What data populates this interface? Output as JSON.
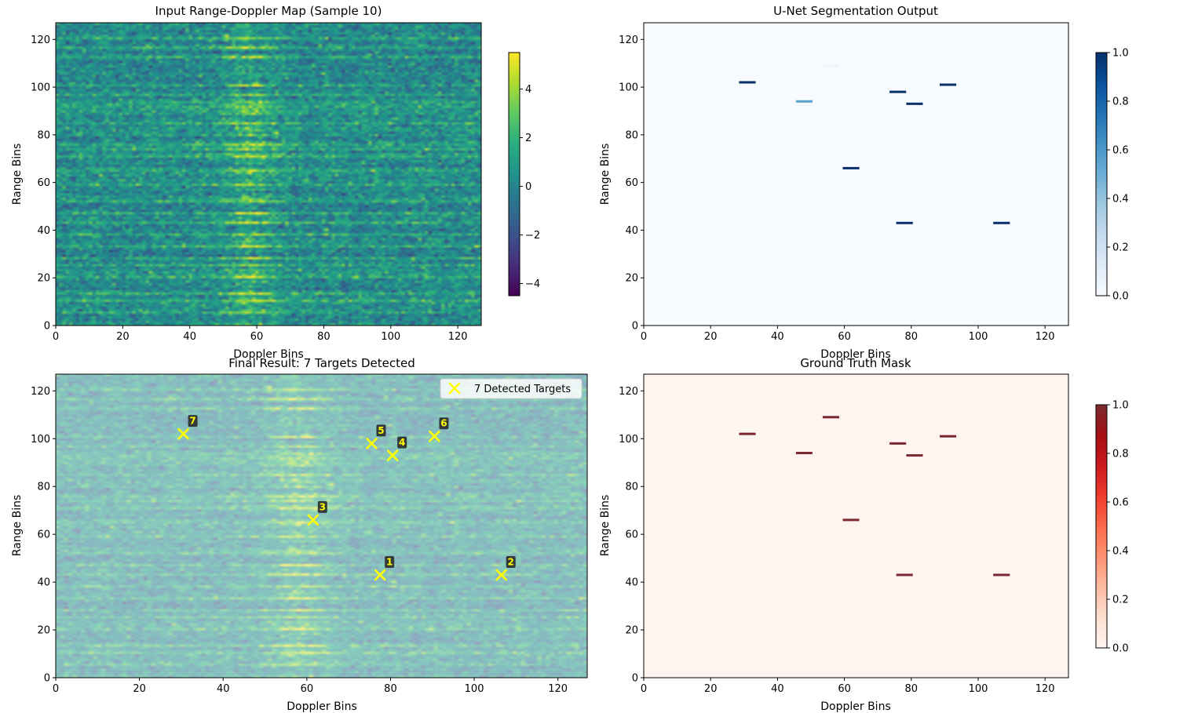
{
  "chart_data": [
    {
      "type": "heatmap",
      "title": "Input Range-Doppler Map (Sample 10)",
      "xlabel": "Doppler Bins",
      "ylabel": "Range Bins",
      "xlim": [
        0,
        127
      ],
      "ylim": [
        0,
        127
      ],
      "xticks": [
        0,
        20,
        40,
        60,
        80,
        100,
        120
      ],
      "yticks": [
        0,
        20,
        40,
        60,
        80,
        100,
        120
      ],
      "colormap": "viridis",
      "colorbar": {
        "min": -4.5,
        "max": 5.5,
        "ticks": [
          -4,
          -2,
          0,
          2,
          4
        ],
        "tick_labels": [
          "−4",
          "−2",
          "0",
          "2",
          "4"
        ]
      },
      "noise_mean": 0.3,
      "ridge_center_doppler": 58,
      "strong_range_rows": [
        5,
        10,
        13,
        20,
        25,
        28,
        33,
        38,
        43,
        47,
        52,
        59,
        65,
        71,
        74,
        76,
        85,
        92,
        97,
        101,
        113,
        117,
        121
      ]
    },
    {
      "type": "heatmap",
      "title": "U-Net Segmentation Output",
      "xlabel": "Doppler Bins",
      "ylabel": "Range Bins",
      "xlim": [
        0,
        127
      ],
      "ylim": [
        0,
        127
      ],
      "xticks": [
        0,
        20,
        40,
        60,
        80,
        100,
        120
      ],
      "yticks": [
        0,
        20,
        40,
        60,
        80,
        100,
        120
      ],
      "colormap": "Blues",
      "colorbar": {
        "min": 0.0,
        "max": 1.0,
        "ticks": [
          0.0,
          0.2,
          0.4,
          0.6,
          0.8,
          1.0
        ],
        "tick_labels": [
          "0.0",
          "0.2",
          "0.4",
          "0.6",
          "0.8",
          "1.0"
        ]
      },
      "segments": [
        {
          "x0": 29,
          "x1": 33,
          "y": 102,
          "value": 1.0
        },
        {
          "x0": 46,
          "x1": 50,
          "y": 94,
          "value": 0.55
        },
        {
          "x0": 54,
          "x1": 58,
          "y": 109,
          "value": 0.06
        },
        {
          "x0": 60,
          "x1": 64,
          "y": 66,
          "value": 1.0
        },
        {
          "x0": 74,
          "x1": 78,
          "y": 98,
          "value": 1.0
        },
        {
          "x0": 76,
          "x1": 80,
          "y": 43,
          "value": 1.0
        },
        {
          "x0": 79,
          "x1": 83,
          "y": 93,
          "value": 1.0
        },
        {
          "x0": 89,
          "x1": 93,
          "y": 101,
          "value": 1.0
        },
        {
          "x0": 105,
          "x1": 109,
          "y": 43,
          "value": 1.0
        }
      ]
    },
    {
      "type": "heatmap",
      "title": "Final Result: 7 Targets Detected",
      "xlabel": "Doppler Bins",
      "ylabel": "Range Bins",
      "xlim": [
        0,
        127
      ],
      "ylim": [
        0,
        127
      ],
      "xticks": [
        0,
        20,
        40,
        60,
        80,
        100,
        120
      ],
      "yticks": [
        0,
        20,
        40,
        60,
        80,
        100,
        120
      ],
      "colormap": "viridis",
      "overlay_alpha": 0.55,
      "legend": {
        "label": "7 Detected Targets",
        "position": "top-right"
      },
      "marker_color": "#ffff00",
      "targets": [
        {
          "id": "1",
          "x": 77.5,
          "y": 43
        },
        {
          "id": "2",
          "x": 106.5,
          "y": 43
        },
        {
          "id": "3",
          "x": 61.5,
          "y": 66
        },
        {
          "id": "4",
          "x": 80.5,
          "y": 93
        },
        {
          "id": "5",
          "x": 75.5,
          "y": 98
        },
        {
          "id": "6",
          "x": 90.5,
          "y": 101
        },
        {
          "id": "7",
          "x": 30.5,
          "y": 102
        }
      ]
    },
    {
      "type": "heatmap",
      "title": "Ground Truth Mask",
      "xlabel": "Doppler Bins",
      "ylabel": "Range Bins",
      "xlim": [
        0,
        127
      ],
      "ylim": [
        0,
        127
      ],
      "xticks": [
        0,
        20,
        40,
        60,
        80,
        100,
        120
      ],
      "yticks": [
        0,
        20,
        40,
        60,
        80,
        100,
        120
      ],
      "colormap": "Reds",
      "colorbar": {
        "min": 0.0,
        "max": 1.0,
        "ticks": [
          0.0,
          0.2,
          0.4,
          0.6,
          0.8,
          1.0
        ],
        "tick_labels": [
          "0.0",
          "0.2",
          "0.4",
          "0.6",
          "0.8",
          "1.0"
        ]
      },
      "segments": [
        {
          "x0": 29,
          "x1": 33,
          "y": 102,
          "value": 1.0
        },
        {
          "x0": 46,
          "x1": 50,
          "y": 94,
          "value": 1.0
        },
        {
          "x0": 54,
          "x1": 58,
          "y": 109,
          "value": 1.0
        },
        {
          "x0": 60,
          "x1": 64,
          "y": 66,
          "value": 1.0
        },
        {
          "x0": 74,
          "x1": 78,
          "y": 98,
          "value": 1.0
        },
        {
          "x0": 76,
          "x1": 80,
          "y": 43,
          "value": 1.0
        },
        {
          "x0": 79,
          "x1": 83,
          "y": 93,
          "value": 1.0
        },
        {
          "x0": 89,
          "x1": 93,
          "y": 101,
          "value": 1.0
        },
        {
          "x0": 105,
          "x1": 109,
          "y": 43,
          "value": 1.0
        }
      ]
    }
  ]
}
